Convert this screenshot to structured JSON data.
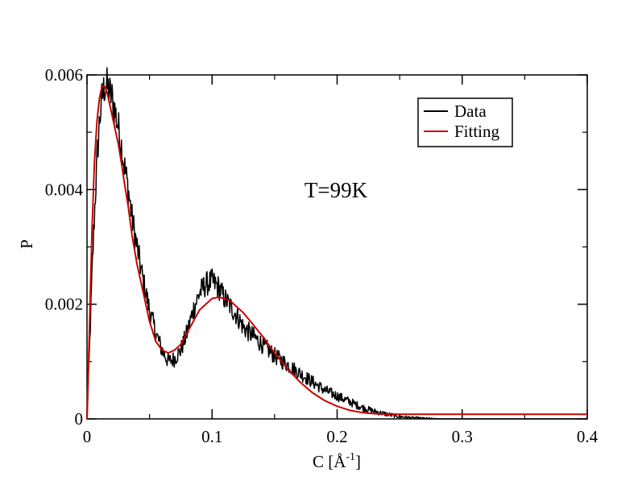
{
  "chart_data": {
    "type": "line",
    "title": "",
    "xlabel": "C [Å",
    "xlabel_sup": "-1",
    "xlabel_close": "]",
    "ylabel": "P",
    "xlim": [
      0,
      0.4
    ],
    "ylim": [
      0,
      0.006
    ],
    "xticks": [
      0,
      0.1,
      0.2,
      0.3,
      0.4
    ],
    "xtick_labels": [
      "0",
      "0.1",
      "0.2",
      "0.3",
      "0.4"
    ],
    "yticks": [
      0,
      0.002,
      0.004,
      0.006
    ],
    "ytick_labels": [
      "0",
      "0.002",
      "0.004",
      "0.006"
    ],
    "grid": false,
    "legend_position": "top-right",
    "annotation": "T=99K",
    "series": [
      {
        "name": "Data",
        "color": "#000000",
        "noisy": true,
        "x": [
          0.0,
          0.002,
          0.004,
          0.006,
          0.008,
          0.01,
          0.012,
          0.014,
          0.016,
          0.018,
          0.02,
          0.022,
          0.025,
          0.028,
          0.03,
          0.033,
          0.036,
          0.04,
          0.045,
          0.05,
          0.055,
          0.06,
          0.065,
          0.07,
          0.075,
          0.08,
          0.085,
          0.09,
          0.095,
          0.1,
          0.105,
          0.11,
          0.115,
          0.12,
          0.125,
          0.13,
          0.14,
          0.15,
          0.16,
          0.17,
          0.18,
          0.19,
          0.2,
          0.21,
          0.22,
          0.23,
          0.24,
          0.25,
          0.26,
          0.27,
          0.28,
          0.3,
          0.32,
          0.35,
          0.38,
          0.4
        ],
        "y": [
          0.0,
          0.0012,
          0.0025,
          0.0036,
          0.0045,
          0.0052,
          0.0056,
          0.0058,
          0.0058,
          0.0057,
          0.0056,
          0.0054,
          0.0051,
          0.0047,
          0.0044,
          0.004,
          0.0035,
          0.003,
          0.0024,
          0.0019,
          0.0015,
          0.0012,
          0.001,
          0.00105,
          0.0012,
          0.0015,
          0.0019,
          0.0022,
          0.00235,
          0.0024,
          0.0023,
          0.0021,
          0.00195,
          0.0018,
          0.0016,
          0.0015,
          0.0013,
          0.0011,
          0.00095,
          0.0008,
          0.00065,
          0.0005,
          0.0004,
          0.0003,
          0.0002,
          0.00013,
          8e-05,
          4e-05,
          2e-05,
          1e-05,
          0.0,
          0.0,
          0.0,
          0.0,
          0.0,
          0.0
        ]
      },
      {
        "name": "Fitting",
        "color": "#cc0000",
        "noisy": false,
        "x": [
          0.0,
          0.002,
          0.004,
          0.006,
          0.008,
          0.01,
          0.012,
          0.014,
          0.016,
          0.018,
          0.02,
          0.022,
          0.025,
          0.028,
          0.03,
          0.033,
          0.036,
          0.04,
          0.045,
          0.05,
          0.055,
          0.06,
          0.065,
          0.07,
          0.075,
          0.08,
          0.085,
          0.09,
          0.095,
          0.1,
          0.105,
          0.11,
          0.115,
          0.12,
          0.125,
          0.13,
          0.14,
          0.15,
          0.16,
          0.17,
          0.18,
          0.19,
          0.2,
          0.21,
          0.22,
          0.23,
          0.24,
          0.25,
          0.26,
          0.27,
          0.28,
          0.3,
          0.32,
          0.35,
          0.38,
          0.4
        ],
        "y": [
          0.0,
          0.0016,
          0.0033,
          0.0045,
          0.0052,
          0.0056,
          0.0058,
          0.0058,
          0.0057,
          0.0055,
          0.0053,
          0.0051,
          0.0048,
          0.0044,
          0.0041,
          0.0037,
          0.0032,
          0.0027,
          0.0022,
          0.0017,
          0.00135,
          0.0012,
          0.00115,
          0.0012,
          0.0013,
          0.0015,
          0.0017,
          0.0019,
          0.002,
          0.0021,
          0.00212,
          0.0021,
          0.00205,
          0.00195,
          0.00185,
          0.00172,
          0.00145,
          0.00115,
          0.00088,
          0.00065,
          0.00046,
          0.00032,
          0.00022,
          0.00015,
          0.00011,
          9e-05,
          8e-05,
          8e-05,
          8e-05,
          8e-05,
          8e-05,
          8e-05,
          8e-05,
          8e-05,
          8e-05,
          8e-05
        ]
      }
    ]
  }
}
